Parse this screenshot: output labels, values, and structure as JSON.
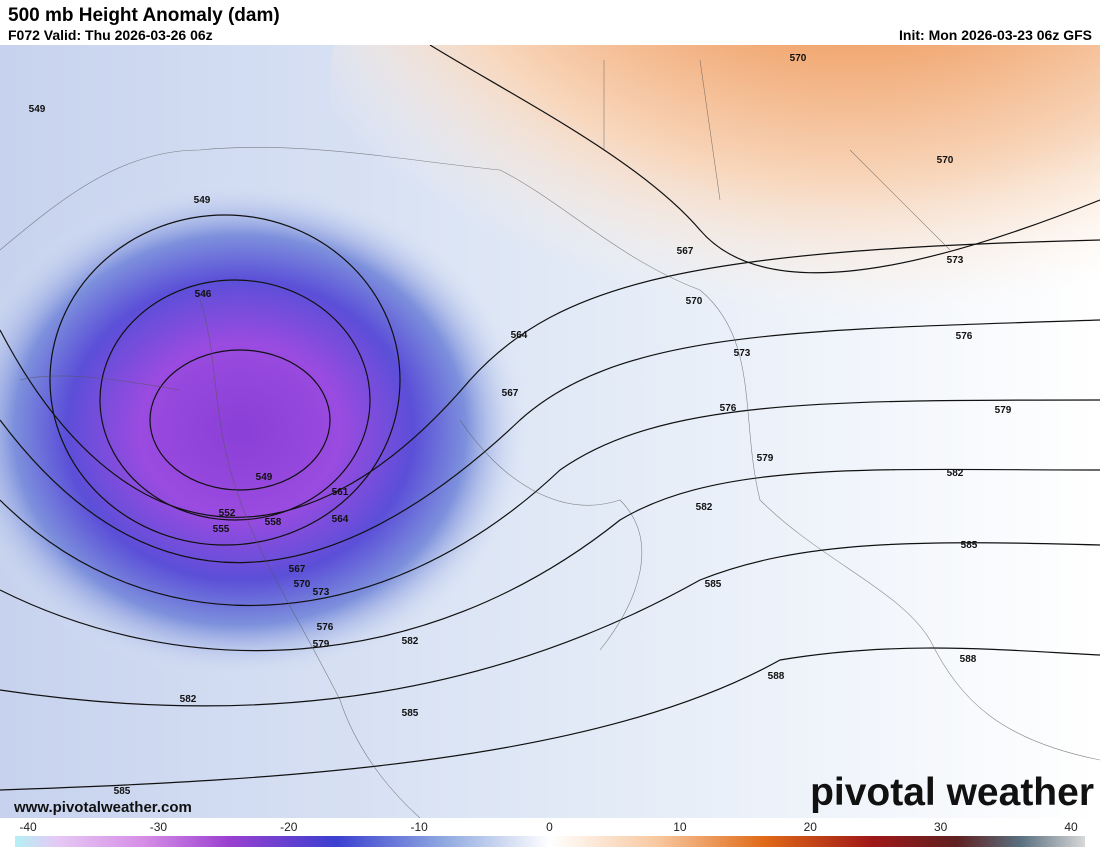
{
  "header": {
    "title": "500 mb Height Anomaly (dam)",
    "valid": "F072 Valid: Thu 2026-03-26 06z",
    "init": "Init: Mon 2026-03-23 06z GFS"
  },
  "contour_labels": [
    "570",
    "570",
    "549",
    "549",
    "567",
    "570",
    "573",
    "564",
    "546",
    "576",
    "573",
    "567",
    "579",
    "576",
    "579",
    "549",
    "582",
    "561",
    "552",
    "582",
    "564",
    "558",
    "555",
    "585",
    "567",
    "570",
    "573",
    "585",
    "576",
    "582",
    "579",
    "588",
    "588",
    "582",
    "585",
    "585"
  ],
  "colorbar": {
    "ticks": [
      -40,
      -30,
      -20,
      -10,
      0,
      10,
      20,
      30,
      40
    ]
  },
  "footer": {
    "url": "www.pivotalweather.com",
    "brand": "pivotal weather"
  }
}
